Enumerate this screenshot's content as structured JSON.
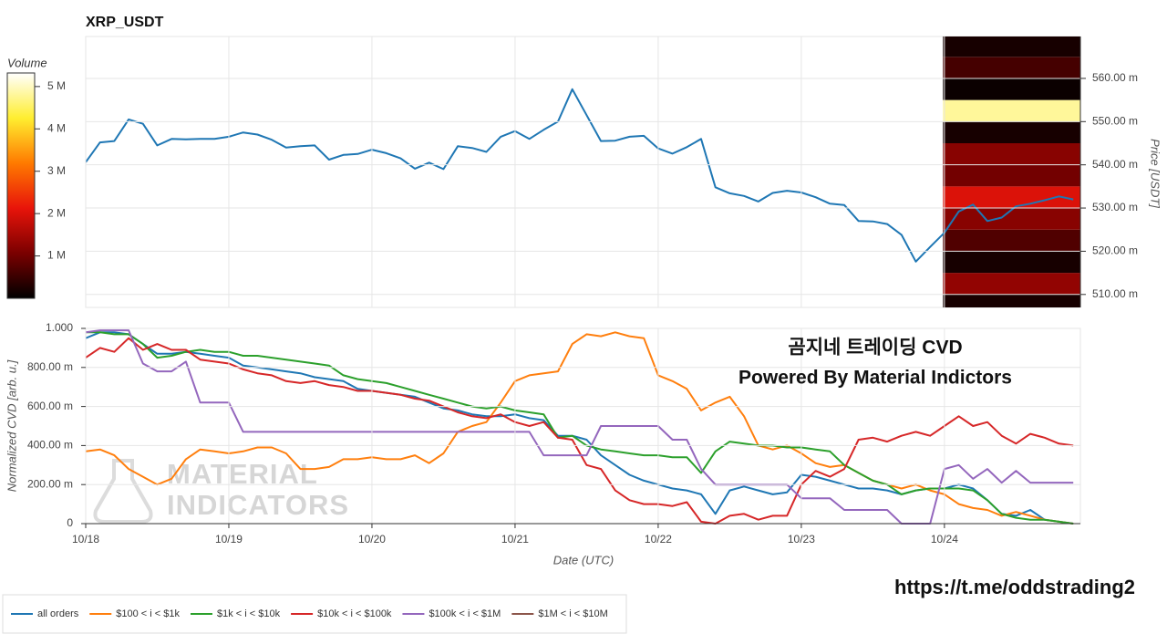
{
  "chart_data": [
    {
      "type": "line",
      "title": "XRP_USDT",
      "y_label": "Price [USDT]",
      "color": "#1f77b4",
      "grid": true,
      "x": [
        0,
        0.1,
        0.2,
        0.3,
        0.4,
        0.5,
        0.6,
        0.7,
        0.8,
        0.9,
        1,
        1.1,
        1.2,
        1.3,
        1.4,
        1.5,
        1.6,
        1.7,
        1.8,
        1.9,
        2,
        2.1,
        2.2,
        2.3,
        2.4,
        2.5,
        2.6,
        2.7,
        2.8,
        2.9,
        3,
        3.1,
        3.2,
        3.3,
        3.4,
        3.5,
        3.6,
        3.7,
        3.8,
        3.9,
        4,
        4.1,
        4.2,
        4.3,
        4.4,
        4.5,
        4.6,
        4.7,
        4.8,
        4.9,
        5,
        5.1,
        5.2,
        5.3,
        5.4,
        5.5,
        5.6,
        5.7,
        5.8,
        5.9,
        6,
        6.1,
        6.2,
        6.3,
        6.4,
        6.5,
        6.6,
        6.7,
        6.8,
        6.9
      ],
      "values": [
        0.5406,
        0.5452,
        0.5455,
        0.5505,
        0.5495,
        0.5445,
        0.546,
        0.5459,
        0.546,
        0.546,
        0.5465,
        0.5475,
        0.547,
        0.5458,
        0.544,
        0.5443,
        0.5445,
        0.5412,
        0.5423,
        0.5425,
        0.5435,
        0.5427,
        0.5415,
        0.5391,
        0.5405,
        0.539,
        0.5443,
        0.5439,
        0.543,
        0.5465,
        0.5478,
        0.546,
        0.5481,
        0.55,
        0.5575,
        0.5515,
        0.5455,
        0.5456,
        0.5465,
        0.5467,
        0.5438,
        0.5426,
        0.5441,
        0.546,
        0.5348,
        0.5334,
        0.5328,
        0.5315,
        0.5335,
        0.534,
        0.5336,
        0.5325,
        0.531,
        0.5307,
        0.527,
        0.5269,
        0.5263,
        0.5238,
        0.5176,
        0.521,
        0.5243,
        0.5292,
        0.5308,
        0.527,
        0.5278,
        0.5304,
        0.531,
        0.5318,
        0.5327,
        0.532
      ],
      "xlim": [
        0,
        6.95
      ],
      "xticks": [
        {
          "value": 0,
          "label": "10/18"
        },
        {
          "value": 1,
          "label": "10/19"
        },
        {
          "value": 2,
          "label": "10/20"
        },
        {
          "value": 3,
          "label": "10/21"
        },
        {
          "value": 4,
          "label": "10/22"
        },
        {
          "value": 5,
          "label": "10/23"
        },
        {
          "value": 6,
          "label": "10/24"
        }
      ],
      "ylim": [
        0.507,
        0.5697
      ],
      "yticks": [
        {
          "value": 0.51,
          "label": "510.00 m"
        },
        {
          "value": 0.52,
          "label": "520.00 m"
        },
        {
          "value": 0.53,
          "label": "530.00 m"
        },
        {
          "value": 0.54,
          "label": "540.00 m"
        },
        {
          "value": 0.55,
          "label": "550.00 m"
        },
        {
          "value": 0.56,
          "label": "560.00 m"
        }
      ],
      "heatmap": {
        "type": "heatmap",
        "colorbar_title": "Volume",
        "xbins": [
          5.99,
          6.95
        ],
        "ybins": [
          0.505,
          0.51,
          0.515,
          0.52,
          0.525,
          0.53,
          0.535,
          0.54,
          0.545,
          0.55,
          0.555,
          0.56,
          0.565,
          0.57
        ],
        "values": [
          200000,
          1300000,
          200000,
          700000,
          1200000,
          2000000,
          1000000,
          1200000,
          200000,
          4800000,
          100000,
          600000,
          200000
        ],
        "clim": [
          0,
          5320000
        ],
        "cticks": [
          {
            "value": 1000000,
            "label": "1 M"
          },
          {
            "value": 2000000,
            "label": "2 M"
          },
          {
            "value": 3000000,
            "label": "3 M"
          },
          {
            "value": 4000000,
            "label": "4 M"
          },
          {
            "value": 5000000,
            "label": "5 M"
          }
        ],
        "colorscale": [
          "#000000",
          "#7a0000",
          "#e8140a",
          "#ff7a00",
          "#ffee30",
          "#ffffff"
        ]
      }
    },
    {
      "type": "line",
      "y_label": "Normalized CVD [arb. u.]",
      "x_label": "Date (UTC)",
      "grid": true,
      "legend": "bottom-left",
      "annotations": [
        "곰지네 트레이딩 CVD",
        "Powered By Material Indictors"
      ],
      "watermark": [
        "MATERIAL",
        "INDICATORS"
      ],
      "link": "https://t.me/oddstrading2",
      "x": [
        0,
        0.1,
        0.2,
        0.3,
        0.4,
        0.5,
        0.6,
        0.7,
        0.8,
        0.9,
        1,
        1.1,
        1.2,
        1.3,
        1.4,
        1.5,
        1.6,
        1.7,
        1.8,
        1.9,
        2,
        2.1,
        2.2,
        2.3,
        2.4,
        2.5,
        2.6,
        2.7,
        2.8,
        2.9,
        3,
        3.1,
        3.2,
        3.3,
        3.4,
        3.5,
        3.6,
        3.7,
        3.8,
        3.9,
        4,
        4.1,
        4.2,
        4.3,
        4.4,
        4.5,
        4.6,
        4.7,
        4.8,
        4.9,
        5,
        5.1,
        5.2,
        5.3,
        5.4,
        5.5,
        5.6,
        5.7,
        5.8,
        5.9,
        6,
        6.1,
        6.2,
        6.3,
        6.4,
        6.5,
        6.6,
        6.7,
        6.8,
        6.9
      ],
      "xlim": [
        0,
        6.95
      ],
      "xticks": [
        {
          "value": 0,
          "label": "10/18"
        },
        {
          "value": 1,
          "label": "10/19"
        },
        {
          "value": 2,
          "label": "10/20"
        },
        {
          "value": 3,
          "label": "10/21"
        },
        {
          "value": 4,
          "label": "10/22"
        },
        {
          "value": 5,
          "label": "10/23"
        },
        {
          "value": 6,
          "label": "10/24"
        }
      ],
      "ylim": [
        0,
        1
      ],
      "yticks": [
        0,
        {
          "value": 0.2,
          "label": "200.00 m"
        },
        {
          "value": 0.4,
          "label": "400.00 m"
        },
        {
          "value": 0.6,
          "label": "600.00 m"
        },
        {
          "value": 0.8,
          "label": "800.00 m"
        },
        {
          "value": 1,
          "label": "1.000"
        }
      ],
      "series": [
        {
          "name": "all orders",
          "color": "#1f77b4",
          "values": [
            0.95,
            0.98,
            0.98,
            0.97,
            0.92,
            0.87,
            0.87,
            0.88,
            0.87,
            0.86,
            0.85,
            0.81,
            0.8,
            0.79,
            0.78,
            0.77,
            0.75,
            0.74,
            0.73,
            0.69,
            0.68,
            0.67,
            0.66,
            0.65,
            0.62,
            0.59,
            0.58,
            0.56,
            0.55,
            0.55,
            0.56,
            0.54,
            0.53,
            0.45,
            0.45,
            0.43,
            0.35,
            0.3,
            0.25,
            0.22,
            0.2,
            0.18,
            0.17,
            0.15,
            0.05,
            0.17,
            0.19,
            0.17,
            0.15,
            0.16,
            0.25,
            0.24,
            0.22,
            0.2,
            0.18,
            0.18,
            0.17,
            0.15,
            0.17,
            0.18,
            0.18,
            0.2,
            0.18,
            0.12,
            0.05,
            0.04,
            0.07,
            0.02,
            0.01,
            0
          ]
        },
        {
          "name": "$100 < i < $1k",
          "color": "#ff7f0e",
          "values": [
            0.37,
            0.38,
            0.35,
            0.28,
            0.24,
            0.2,
            0.23,
            0.33,
            0.38,
            0.37,
            0.36,
            0.37,
            0.39,
            0.39,
            0.36,
            0.28,
            0.28,
            0.29,
            0.33,
            0.33,
            0.34,
            0.33,
            0.33,
            0.35,
            0.31,
            0.36,
            0.47,
            0.5,
            0.52,
            0.62,
            0.73,
            0.76,
            0.77,
            0.78,
            0.92,
            0.97,
            0.96,
            0.98,
            0.96,
            0.95,
            0.76,
            0.73,
            0.69,
            0.58,
            0.62,
            0.65,
            0.55,
            0.4,
            0.38,
            0.4,
            0.36,
            0.31,
            0.29,
            0.3,
            0.26,
            0.22,
            0.2,
            0.18,
            0.2,
            0.17,
            0.15,
            0.1,
            0.08,
            0.07,
            0.04,
            0.06,
            0.04,
            0.02,
            0.01,
            0
          ]
        },
        {
          "name": "$1k < i < $10k",
          "color": "#2ca02c",
          "values": [
            0.98,
            0.98,
            0.97,
            0.97,
            0.92,
            0.85,
            0.86,
            0.88,
            0.89,
            0.88,
            0.88,
            0.86,
            0.86,
            0.85,
            0.84,
            0.83,
            0.82,
            0.81,
            0.76,
            0.74,
            0.73,
            0.72,
            0.7,
            0.68,
            0.66,
            0.64,
            0.62,
            0.6,
            0.59,
            0.6,
            0.58,
            0.57,
            0.56,
            0.44,
            0.45,
            0.4,
            0.38,
            0.37,
            0.36,
            0.35,
            0.35,
            0.34,
            0.34,
            0.26,
            0.37,
            0.42,
            0.41,
            0.4,
            0.4,
            0.39,
            0.39,
            0.38,
            0.37,
            0.3,
            0.26,
            0.22,
            0.2,
            0.15,
            0.17,
            0.18,
            0.18,
            0.18,
            0.17,
            0.12,
            0.05,
            0.03,
            0.02,
            0.02,
            0.01,
            0
          ]
        },
        {
          "name": "$10k < i < $100k",
          "color": "#d62728",
          "values": [
            0.85,
            0.9,
            0.88,
            0.95,
            0.89,
            0.92,
            0.89,
            0.89,
            0.84,
            0.83,
            0.82,
            0.79,
            0.77,
            0.76,
            0.73,
            0.72,
            0.73,
            0.71,
            0.7,
            0.68,
            0.68,
            0.67,
            0.66,
            0.64,
            0.63,
            0.6,
            0.57,
            0.55,
            0.54,
            0.56,
            0.52,
            0.5,
            0.52,
            0.44,
            0.43,
            0.3,
            0.28,
            0.17,
            0.12,
            0.1,
            0.1,
            0.09,
            0.11,
            0.01,
            0,
            0.04,
            0.05,
            0.02,
            0.04,
            0.04,
            0.2,
            0.27,
            0.24,
            0.28,
            0.43,
            0.44,
            0.42,
            0.45,
            0.47,
            0.45,
            0.5,
            0.55,
            0.5,
            0.52,
            0.45,
            0.41,
            0.46,
            0.44,
            0.41,
            0.4
          ]
        },
        {
          "name": "$100k < i < $1M",
          "color": "#9467bd",
          "values": [
            0.98,
            0.99,
            0.99,
            0.99,
            0.82,
            0.78,
            0.78,
            0.83,
            0.62,
            0.62,
            0.62,
            0.47,
            0.47,
            0.47,
            0.47,
            0.47,
            0.47,
            0.47,
            0.47,
            0.47,
            0.47,
            0.47,
            0.47,
            0.47,
            0.47,
            0.47,
            0.47,
            0.47,
            0.47,
            0.47,
            0.47,
            0.47,
            0.35,
            0.35,
            0.35,
            0.35,
            0.5,
            0.5,
            0.5,
            0.5,
            0.5,
            0.43,
            0.43,
            0.28,
            0.2,
            0.2,
            0.2,
            0.2,
            0.2,
            0.2,
            0.13,
            0.13,
            0.13,
            0.07,
            0.07,
            0.07,
            0.07,
            0,
            0,
            0,
            0.28,
            0.3,
            0.23,
            0.28,
            0.21,
            0.27,
            0.21,
            0.21,
            0.21,
            0.21
          ]
        },
        {
          "name": "$1M < i < $10M",
          "color": "#8c564b",
          "values": [
            null,
            null,
            null,
            null,
            null,
            null,
            null,
            null,
            null,
            null,
            null,
            null,
            null,
            null,
            null,
            null,
            null,
            null,
            null,
            null,
            null,
            null,
            null,
            null,
            null,
            null,
            null,
            null,
            null,
            null,
            null,
            null,
            null,
            null,
            null,
            null,
            null,
            null,
            null,
            null,
            null,
            null,
            null,
            null,
            null,
            null,
            null,
            null,
            null,
            null,
            null,
            null,
            null,
            null,
            null,
            null,
            null,
            null,
            null,
            null,
            null,
            null,
            null,
            null,
            null,
            null,
            null,
            null,
            null,
            null
          ]
        }
      ]
    }
  ]
}
